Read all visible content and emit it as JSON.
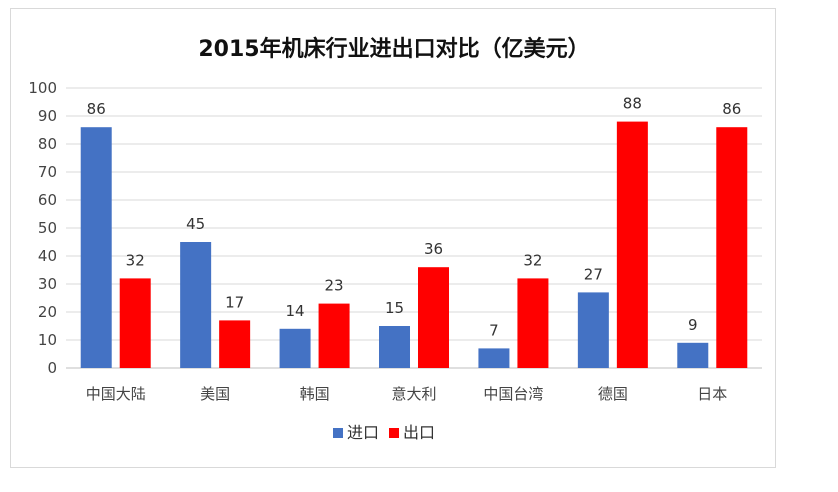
{
  "chart_data": {
    "type": "bar",
    "title": "2015年机床行业进出口对比（亿美元）",
    "categories": [
      "中国大陆",
      "美国",
      "韩国",
      "意大利",
      "中国台湾",
      "德国",
      "日本"
    ],
    "series": [
      {
        "name": "进口",
        "values": [
          86,
          45,
          14,
          15,
          7,
          27,
          9
        ],
        "color": "#4472c4"
      },
      {
        "name": "出口",
        "values": [
          32,
          17,
          23,
          36,
          32,
          88,
          86
        ],
        "color": "#ff0000"
      }
    ],
    "ylim": [
      0,
      100
    ],
    "yticks": [
      0,
      10,
      20,
      30,
      40,
      50,
      60,
      70,
      80,
      90,
      100
    ],
    "grid": true,
    "legend": "bottom",
    "data_labels": true
  }
}
